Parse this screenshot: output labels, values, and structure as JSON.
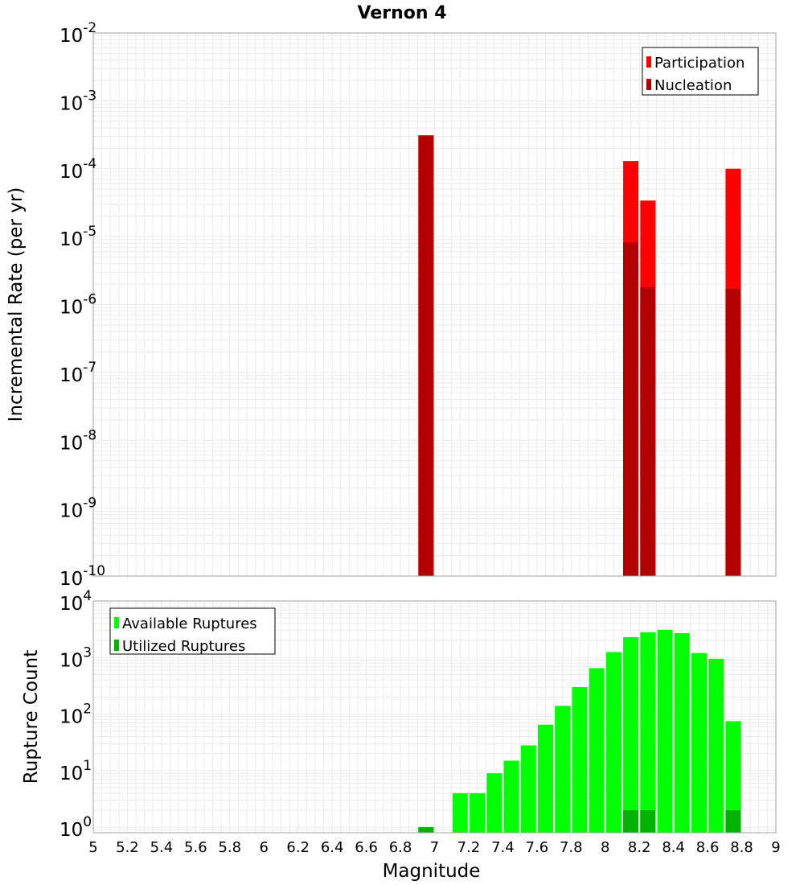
{
  "title": "Vernon 4",
  "colors": {
    "participation": "#ff0000",
    "nucleation": "#b30000",
    "available": "#00ff00",
    "utilized": "#00b300",
    "grid": "#ebebeb",
    "frame": "#a0a0a0"
  },
  "chart_data": [
    {
      "type": "bar",
      "panel": "top",
      "ylabel": "Incremental Rate (per yr)",
      "yscale": "log",
      "ylim": [
        1e-10,
        0.01
      ],
      "y_ticks": [
        {
          "base": "10",
          "exp": "-2"
        },
        {
          "base": "10",
          "exp": "-3"
        },
        {
          "base": "10",
          "exp": "-4"
        },
        {
          "base": "10",
          "exp": "-5"
        },
        {
          "base": "10",
          "exp": "-6"
        },
        {
          "base": "10",
          "exp": "-7"
        },
        {
          "base": "10",
          "exp": "-8"
        },
        {
          "base": "10",
          "exp": "-9"
        },
        {
          "base": "10",
          "exp": "-10"
        }
      ],
      "legend_position": "top-right",
      "grid": true,
      "series": [
        {
          "name": "Participation",
          "x": [
            6.95,
            8.15,
            8.25,
            8.75
          ],
          "values": [
            0.00031,
            0.00013,
            3.4e-05,
            0.0001
          ]
        },
        {
          "name": "Nucleation",
          "x": [
            6.95,
            8.15,
            8.25,
            8.75
          ],
          "values": [
            0.00031,
            8.2e-06,
            1.8e-06,
            1.7e-06
          ]
        }
      ]
    },
    {
      "type": "bar",
      "panel": "bottom",
      "xlabel": "Magnitude",
      "ylabel": "Rupture Count",
      "yscale": "log",
      "ylim": [
        0.8,
        10000
      ],
      "xlim": [
        5,
        9
      ],
      "x_ticks": [
        "5",
        "5.2",
        "5.4",
        "5.6",
        "5.8",
        "6",
        "6.2",
        "6.4",
        "6.6",
        "6.8",
        "7",
        "7.2",
        "7.4",
        "7.6",
        "7.8",
        "8",
        "8.2",
        "8.4",
        "8.6",
        "8.8",
        "9"
      ],
      "y_ticks": [
        {
          "base": "10",
          "exp": "4"
        },
        {
          "base": "10",
          "exp": "3"
        },
        {
          "base": "10",
          "exp": "2"
        },
        {
          "base": "10",
          "exp": "1"
        },
        {
          "base": "10",
          "exp": "0"
        }
      ],
      "legend_position": "top-left",
      "grid": true,
      "series": [
        {
          "name": "Available Ruptures",
          "x": [
            6.95,
            7.15,
            7.25,
            7.35,
            7.45,
            7.55,
            7.65,
            7.75,
            7.85,
            7.95,
            8.05,
            8.15,
            8.25,
            8.35,
            8.45,
            8.55,
            8.65,
            8.75
          ],
          "values": [
            1,
            4,
            4,
            9,
            15,
            28,
            65,
            140,
            300,
            650,
            1250,
            2300,
            2800,
            3100,
            2700,
            1200,
            950,
            75
          ]
        },
        {
          "name": "Utilized Ruptures",
          "x": [
            6.95,
            8.15,
            8.25,
            8.75
          ],
          "values": [
            1,
            2,
            2,
            2
          ]
        }
      ]
    }
  ]
}
